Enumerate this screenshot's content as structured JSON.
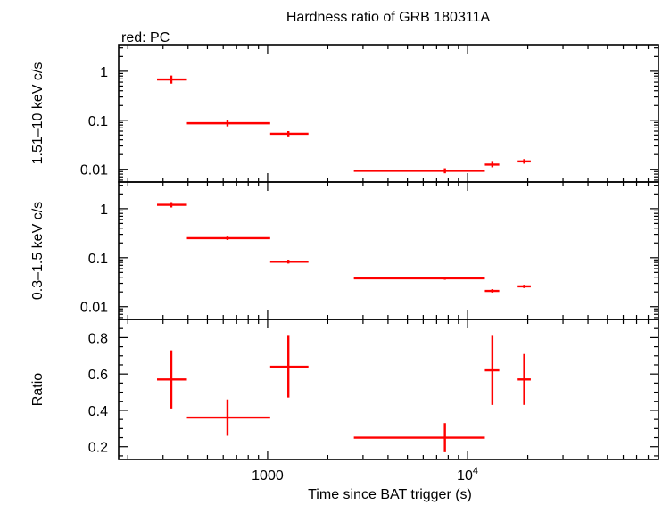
{
  "title": "Hardness ratio of GRB 180311A",
  "legend_note": "red: PC",
  "colors": {
    "series": "#ff0000",
    "axes": "#000000",
    "background": "#ffffff"
  },
  "chart_data": {
    "type": "scatter",
    "xlabel": "Time since BAT trigger (s)",
    "xscale": "log",
    "xlim": [
      180,
      90000
    ],
    "x_tick_labels": [
      {
        "value": 1000,
        "label": "1000"
      },
      {
        "value": 10000,
        "label": "10^4"
      }
    ],
    "series_color": "#ff0000",
    "panels": [
      {
        "id": "hard",
        "ylabel": "1.51–10 keV c/s",
        "yscale": "log",
        "ylim": [
          0.0055,
          3.5
        ],
        "y_tick_labels": [
          {
            "value": 1,
            "label": "1"
          },
          {
            "value": 0.1,
            "label": "0.1"
          },
          {
            "value": 0.01,
            "label": "0.01"
          }
        ],
        "points": [
          {
            "x": 330,
            "xlo": 280,
            "xhi": 395,
            "y": 0.68,
            "ylo": 0.56,
            "yhi": 0.82
          },
          {
            "x": 630,
            "xlo": 395,
            "xhi": 1030,
            "y": 0.087,
            "ylo": 0.075,
            "yhi": 0.1
          },
          {
            "x": 1270,
            "xlo": 1030,
            "xhi": 1600,
            "y": 0.053,
            "ylo": 0.047,
            "yhi": 0.06
          },
          {
            "x": 7700,
            "xlo": 2700,
            "xhi": 12200,
            "y": 0.0093,
            "ylo": 0.0083,
            "yhi": 0.0105
          },
          {
            "x": 13300,
            "xlo": 12200,
            "xhi": 14400,
            "y": 0.0125,
            "ylo": 0.011,
            "yhi": 0.0142
          },
          {
            "x": 19200,
            "xlo": 17800,
            "xhi": 20700,
            "y": 0.0145,
            "ylo": 0.013,
            "yhi": 0.0162
          }
        ]
      },
      {
        "id": "soft",
        "ylabel": "0.3–1.5 keV c/s",
        "yscale": "log",
        "ylim": [
          0.0055,
          3.5
        ],
        "y_tick_labels": [
          {
            "value": 1,
            "label": "1"
          },
          {
            "value": 0.1,
            "label": "0.1"
          },
          {
            "value": 0.01,
            "label": "0.01"
          }
        ],
        "points": [
          {
            "x": 330,
            "xlo": 280,
            "xhi": 395,
            "y": 1.2,
            "ylo": 1.06,
            "yhi": 1.36
          },
          {
            "x": 630,
            "xlo": 395,
            "xhi": 1030,
            "y": 0.25,
            "ylo": 0.23,
            "yhi": 0.27
          },
          {
            "x": 1270,
            "xlo": 1030,
            "xhi": 1600,
            "y": 0.083,
            "ylo": 0.076,
            "yhi": 0.091
          },
          {
            "x": 7700,
            "xlo": 2700,
            "xhi": 12200,
            "y": 0.038,
            "ylo": 0.0355,
            "yhi": 0.0405
          },
          {
            "x": 13300,
            "xlo": 12200,
            "xhi": 14400,
            "y": 0.021,
            "ylo": 0.0194,
            "yhi": 0.0228
          },
          {
            "x": 19200,
            "xlo": 17800,
            "xhi": 20700,
            "y": 0.026,
            "ylo": 0.024,
            "yhi": 0.0281
          }
        ]
      },
      {
        "id": "ratio",
        "ylabel": "Ratio",
        "yscale": "linear",
        "ylim": [
          0.13,
          0.9
        ],
        "y_tick_labels": [
          {
            "value": 0.8,
            "label": "0.8"
          },
          {
            "value": 0.6,
            "label": "0.6"
          },
          {
            "value": 0.4,
            "label": "0.4"
          },
          {
            "value": 0.2,
            "label": "0.2"
          }
        ],
        "points": [
          {
            "x": 330,
            "xlo": 280,
            "xhi": 395,
            "y": 0.57,
            "ylo": 0.41,
            "yhi": 0.73
          },
          {
            "x": 630,
            "xlo": 395,
            "xhi": 1030,
            "y": 0.36,
            "ylo": 0.26,
            "yhi": 0.46
          },
          {
            "x": 1270,
            "xlo": 1030,
            "xhi": 1600,
            "y": 0.64,
            "ylo": 0.47,
            "yhi": 0.81
          },
          {
            "x": 7700,
            "xlo": 2700,
            "xhi": 12200,
            "y": 0.25,
            "ylo": 0.17,
            "yhi": 0.33
          },
          {
            "x": 13300,
            "xlo": 12200,
            "xhi": 14400,
            "y": 0.62,
            "ylo": 0.43,
            "yhi": 0.81
          },
          {
            "x": 19200,
            "xlo": 17800,
            "xhi": 20700,
            "y": 0.57,
            "ylo": 0.43,
            "yhi": 0.71
          }
        ]
      }
    ]
  }
}
